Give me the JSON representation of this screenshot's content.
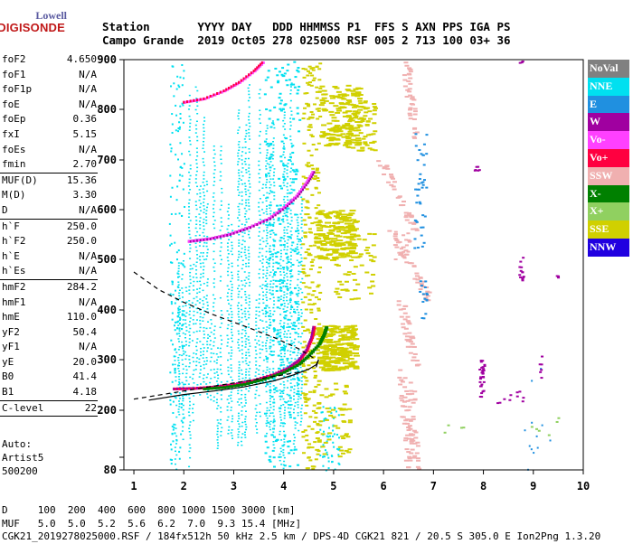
{
  "logo": {
    "line1": "Lowell",
    "line2": "DIGISONDE"
  },
  "header": {
    "line1": "Station       YYYY DAY   DDD HHMMSS P1  FFS S AXN PPS IGA PS",
    "line2": "Campo Grande  2019 Oct05 278 025000 RSF 005 2 713 100 03+ 36"
  },
  "params": {
    "group1": [
      {
        "label": "foF2",
        "value": "4.650"
      },
      {
        "label": "foF1",
        "value": "N/A"
      },
      {
        "label": "foF1p",
        "value": "N/A"
      },
      {
        "label": "foE",
        "value": "N/A"
      },
      {
        "label": "foEp",
        "value": "0.36"
      },
      {
        "label": "fxI",
        "value": "5.15"
      },
      {
        "label": "foEs",
        "value": "N/A"
      },
      {
        "label": "fmin",
        "value": "2.70"
      }
    ],
    "group2": [
      {
        "label": "MUF(D)",
        "value": "15.36"
      },
      {
        "label": "M(D)",
        "value": "3.30"
      },
      {
        "label": "D",
        "value": "N/A"
      }
    ],
    "group3": [
      {
        "label": "h`F",
        "value": "250.0"
      },
      {
        "label": "h`F2",
        "value": "250.0"
      },
      {
        "label": "h`E",
        "value": "N/A"
      },
      {
        "label": "h`Es",
        "value": "N/A"
      }
    ],
    "group4": [
      {
        "label": "hmF2",
        "value": "284.2"
      },
      {
        "label": "hmF1",
        "value": "N/A"
      },
      {
        "label": "hmE",
        "value": "110.0"
      },
      {
        "label": "yF2",
        "value": "50.4"
      },
      {
        "label": "yF1",
        "value": "N/A"
      },
      {
        "label": "yE",
        "value": "20.0"
      },
      {
        "label": "B0",
        "value": "41.4"
      },
      {
        "label": "B1",
        "value": "4.18"
      }
    ],
    "group5": [
      {
        "label": "C-level",
        "value": "22"
      }
    ]
  },
  "auto": {
    "line1": "Auto:",
    "line2": "Artist5",
    "line3": "500200"
  },
  "legend": [
    {
      "label": "NoVal",
      "color": "#808080"
    },
    {
      "label": "NNE",
      "color": "#00e0f0"
    },
    {
      "label": "E",
      "color": "#2090e0"
    },
    {
      "label": "W",
      "color": "#a000a0"
    },
    {
      "label": "Vo-",
      "color": "#ff40ff"
    },
    {
      "label": "Vo+",
      "color": "#ff0040"
    },
    {
      "label": "SSW",
      "color": "#f0b0b0"
    },
    {
      "label": "X-",
      "color": "#008000"
    },
    {
      "label": "X+",
      "color": "#90d060"
    },
    {
      "label": "SSE",
      "color": "#d0d000"
    },
    {
      "label": "NNW",
      "color": "#2000e0"
    }
  ],
  "footer": {
    "line1": "D     100  200  400  600  800 1000 1500 3000 [km]",
    "line2": "MUF   5.0  5.0  5.2  5.6  6.2  7.0  9.3 15.4 [MHz]",
    "line3": "CGK21_2019278025000.RSF / 184fx512h 50 kHz 2.5 km / DPS-4D CGK21 821 / 20.5 S 305.0 E Ion2Png 1.3.20"
  },
  "chart_data": {
    "type": "scatter",
    "xlim": [
      0.8,
      10
    ],
    "ylim": [
      80,
      900
    ],
    "xticks": [
      1,
      2,
      3,
      4,
      5,
      6,
      7,
      8,
      9,
      10
    ],
    "yticks": [
      80,
      100,
      200,
      300,
      400,
      500,
      600,
      700,
      800,
      900
    ],
    "ytick_labels": [
      "80",
      "",
      "200",
      "300",
      "400",
      "500",
      "600",
      "700",
      "800",
      "900"
    ],
    "traces": {
      "o_trace": {
        "x": [
          1.8,
          2.2,
          2.6,
          3.0,
          3.4,
          3.8,
          4.1,
          4.3,
          4.45,
          4.55,
          4.6
        ],
        "y": [
          243,
          244,
          247,
          252,
          260,
          272,
          285,
          300,
          320,
          345,
          370
        ]
      },
      "x_trace": {
        "x": [
          2.4,
          2.8,
          3.2,
          3.6,
          4.0,
          4.3,
          4.5,
          4.7,
          4.8,
          4.85
        ],
        "y": [
          243,
          246,
          252,
          262,
          276,
          292,
          310,
          332,
          352,
          368
        ]
      },
      "o_second_hop": {
        "x": [
          2.1,
          2.5,
          2.9,
          3.3,
          3.7,
          4.0,
          4.25,
          4.45,
          4.6
        ],
        "y": [
          537,
          542,
          551,
          565,
          583,
          605,
          628,
          655,
          680
        ]
      },
      "o_third_hop": {
        "x": [
          2.0,
          2.4,
          2.8,
          3.1,
          3.4,
          3.6
        ],
        "y": [
          815,
          822,
          838,
          855,
          878,
          898
        ]
      }
    },
    "profile_curve": {
      "x": [
        1.3,
        2.0,
        2.6,
        3.2,
        3.8,
        4.2,
        4.5,
        4.65,
        4.7,
        4.65
      ],
      "y": [
        220,
        231,
        238,
        246,
        258,
        270,
        281,
        290,
        300,
        285
      ]
    },
    "profile_dashed_upper": {
      "x": [
        1.0,
        1.5,
        2.0,
        2.6,
        3.2,
        3.8,
        4.3,
        4.65
      ],
      "y": [
        475,
        440,
        415,
        390,
        368,
        345,
        322,
        300
      ]
    },
    "profile_dashed_lower": {
      "x": [
        1.0,
        1.5,
        2.0,
        2.5,
        3.0,
        3.5,
        4.0,
        4.4
      ],
      "y": [
        222,
        230,
        238,
        246,
        254,
        262,
        270,
        277
      ]
    }
  }
}
